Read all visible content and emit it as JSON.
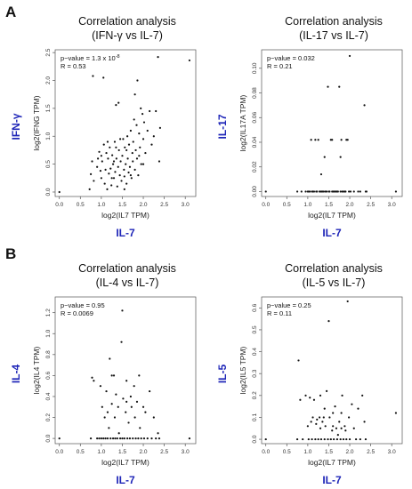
{
  "panels": {
    "A": "A",
    "B": "B"
  },
  "chart_data": [
    {
      "type": "scatter",
      "title_line1": "Correlation analysis",
      "title_line2": "(IFN-γ vs IL-7)",
      "ylabel": "log2(IFNG TPM)",
      "xlabel": "log2(IL7 TPM)",
      "gene_y": "IFN-γ",
      "gene_x": "IL-7",
      "p_text": "p−value = 1.3 x 10",
      "p_exp": "-8",
      "r_text": "R = 0.53",
      "xlim": [
        -0.1,
        3.25
      ],
      "ylim": [
        -0.08,
        2.55
      ],
      "xticks": [
        0.0,
        0.5,
        1.0,
        1.5,
        2.0,
        2.5,
        3.0
      ],
      "xtick_labels": [
        "0.0",
        "0.5",
        "1.0",
        "1.5",
        "2.0",
        "2.5",
        "3.0"
      ],
      "yticks": [
        0.0,
        0.5,
        1.0,
        1.5,
        2.0,
        2.5
      ],
      "ytick_labels": [
        "0.0",
        "0.5",
        "1.0",
        "1.5",
        "2.0",
        "2.5"
      ],
      "points": [
        [
          0.0,
          0.0
        ],
        [
          0.72,
          0.05
        ],
        [
          0.75,
          0.32
        ],
        [
          0.78,
          0.55
        ],
        [
          0.8,
          2.08
        ],
        [
          0.82,
          0.2
        ],
        [
          0.9,
          0.45
        ],
        [
          0.92,
          0.6
        ],
        [
          0.95,
          0.72
        ],
        [
          0.98,
          0.38
        ],
        [
          1.0,
          0.25
        ],
        [
          1.02,
          0.55
        ],
        [
          1.05,
          2.05
        ],
        [
          1.06,
          0.85
        ],
        [
          1.08,
          0.15
        ],
        [
          1.1,
          0.4
        ],
        [
          1.12,
          0.7
        ],
        [
          1.14,
          0.05
        ],
        [
          1.16,
          0.6
        ],
        [
          1.18,
          0.33
        ],
        [
          1.2,
          0.8
        ],
        [
          1.22,
          0.42
        ],
        [
          1.24,
          0.12
        ],
        [
          1.26,
          0.66
        ],
        [
          1.28,
          0.5
        ],
        [
          1.3,
          0.25
        ],
        [
          1.32,
          0.9
        ],
        [
          1.33,
          0.36
        ],
        [
          1.35,
          1.56
        ],
        [
          1.36,
          0.6
        ],
        [
          1.38,
          0.1
        ],
        [
          1.4,
          0.45
        ],
        [
          1.41,
          1.6
        ],
        [
          1.42,
          0.75
        ],
        [
          1.44,
          0.3
        ],
        [
          1.46,
          0.55
        ],
        [
          1.48,
          0.2
        ],
        [
          1.5,
          0.65
        ],
        [
          1.52,
          0.95
        ],
        [
          1.54,
          0.4
        ],
        [
          1.55,
          0.28
        ],
        [
          1.56,
          0.8
        ],
        [
          1.58,
          0.5
        ],
        [
          1.6,
          0.15
        ],
        [
          1.62,
          1.0
        ],
        [
          1.63,
          0.6
        ],
        [
          1.65,
          0.35
        ],
        [
          1.66,
          0.85
        ],
        [
          1.68,
          0.45
        ],
        [
          1.7,
          1.1
        ],
        [
          1.72,
          0.25
        ],
        [
          1.74,
          0.7
        ],
        [
          1.75,
          0.55
        ],
        [
          1.76,
          0.9
        ],
        [
          1.78,
          1.3
        ],
        [
          1.8,
          0.4
        ],
        [
          1.8,
          1.75
        ],
        [
          1.82,
          0.75
        ],
        [
          1.84,
          1.2
        ],
        [
          1.85,
          0.6
        ],
        [
          1.86,
          2.0
        ],
        [
          1.88,
          0.3
        ],
        [
          1.9,
          1.05
        ],
        [
          1.92,
          0.8
        ],
        [
          1.94,
          1.5
        ],
        [
          1.95,
          0.5
        ],
        [
          1.98,
          1.4
        ],
        [
          2.0,
          0.95
        ],
        [
          2.02,
          1.25
        ],
        [
          2.05,
          0.7
        ],
        [
          2.1,
          1.1
        ],
        [
          2.15,
          1.45
        ],
        [
          2.2,
          0.85
        ],
        [
          2.25,
          1.0
        ],
        [
          2.3,
          1.45
        ],
        [
          2.35,
          2.42
        ],
        [
          2.38,
          0.55
        ],
        [
          2.4,
          1.15
        ],
        [
          3.1,
          2.36
        ],
        [
          1.0,
          0.65
        ],
        [
          1.3,
          0.55
        ],
        [
          1.45,
          0.95
        ],
        [
          1.6,
          0.75
        ],
        [
          1.7,
          0.3
        ],
        [
          1.9,
          0.65
        ],
        [
          2.0,
          0.5
        ],
        [
          1.15,
          0.9
        ],
        [
          1.25,
          0.25
        ],
        [
          1.55,
          0.05
        ],
        [
          1.35,
          0.8
        ]
      ]
    },
    {
      "type": "scatter",
      "title_line1": "Correlation analysis",
      "title_line2": "(IL-17 vs IL-7)",
      "ylabel": "log2(IL17A TPM)",
      "xlabel": "log2(IL7 TPM)",
      "gene_y": "IL-17",
      "gene_x": "IL-7",
      "p_text": "p−value = 0.032",
      "p_exp": "",
      "r_text": "R = 0.21",
      "xlim": [
        -0.1,
        3.25
      ],
      "ylim": [
        -0.004,
        0.115
      ],
      "xticks": [
        0.0,
        0.5,
        1.0,
        1.5,
        2.0,
        2.5,
        3.0
      ],
      "xtick_labels": [
        "0.0",
        "0.5",
        "1.0",
        "1.5",
        "2.0",
        "2.5",
        "3.0"
      ],
      "yticks": [
        0.0,
        0.02,
        0.04,
        0.06,
        0.08,
        0.1
      ],
      "ytick_labels": [
        "0.00",
        "0.02",
        "0.04",
        "0.06",
        "0.08",
        "0.10"
      ],
      "points": [
        [
          0.0,
          0.0
        ],
        [
          0.75,
          0.0
        ],
        [
          0.85,
          0.0
        ],
        [
          0.95,
          0.0
        ],
        [
          1.0,
          0.0
        ],
        [
          1.02,
          0.0
        ],
        [
          1.05,
          0.0
        ],
        [
          1.08,
          0.042
        ],
        [
          1.1,
          0.0
        ],
        [
          1.12,
          0.0
        ],
        [
          1.15,
          0.0
        ],
        [
          1.18,
          0.042
        ],
        [
          1.2,
          0.0
        ],
        [
          1.22,
          0.0
        ],
        [
          1.25,
          0.042
        ],
        [
          1.28,
          0.0
        ],
        [
          1.3,
          0.0
        ],
        [
          1.32,
          0.014
        ],
        [
          1.33,
          0.0
        ],
        [
          1.35,
          0.0
        ],
        [
          1.38,
          0.0
        ],
        [
          1.4,
          0.028
        ],
        [
          1.42,
          0.0
        ],
        [
          1.45,
          0.0
        ],
        [
          1.48,
          0.085
        ],
        [
          1.5,
          0.0
        ],
        [
          1.52,
          0.0
        ],
        [
          1.55,
          0.042
        ],
        [
          1.58,
          0.0
        ],
        [
          1.6,
          0.0
        ],
        [
          1.62,
          0.0
        ],
        [
          1.65,
          0.0
        ],
        [
          1.68,
          0.0
        ],
        [
          1.7,
          0.0
        ],
        [
          1.72,
          0.0
        ],
        [
          1.75,
          0.085
        ],
        [
          1.78,
          0.0
        ],
        [
          1.8,
          0.042
        ],
        [
          1.82,
          0.0
        ],
        [
          1.85,
          0.0
        ],
        [
          1.88,
          0.0
        ],
        [
          1.9,
          0.0
        ],
        [
          1.92,
          0.042
        ],
        [
          1.95,
          0.042
        ],
        [
          1.98,
          0.0
        ],
        [
          2.0,
          0.11
        ],
        [
          2.02,
          0.0
        ],
        [
          2.1,
          0.0
        ],
        [
          2.2,
          0.0
        ],
        [
          2.25,
          0.0
        ],
        [
          2.35,
          0.07
        ],
        [
          2.38,
          0.0
        ],
        [
          2.4,
          0.0
        ],
        [
          3.1,
          0.0
        ],
        [
          1.78,
          0.028
        ],
        [
          1.58,
          0.042
        ]
      ]
    },
    {
      "type": "scatter",
      "title_line1": "Correlation analysis",
      "title_line2": "(IL-4 vs IL-7)",
      "ylabel": "log2(IL4 TPM)",
      "xlabel": "log2(IL7 TPM)",
      "gene_y": "IL-4",
      "gene_x": "IL-7",
      "p_text": "p−value = 0.95",
      "p_exp": "",
      "r_text": "R = 0.0069",
      "xlim": [
        -0.1,
        3.25
      ],
      "ylim": [
        -0.05,
        1.35
      ],
      "xticks": [
        0.0,
        0.5,
        1.0,
        1.5,
        2.0,
        2.5,
        3.0
      ],
      "xtick_labels": [
        "0.0",
        "0.5",
        "1.0",
        "1.5",
        "2.0",
        "2.5",
        "3.0"
      ],
      "yticks": [
        0.0,
        0.2,
        0.4,
        0.6,
        0.8,
        1.0,
        1.2
      ],
      "ytick_labels": [
        "0.0",
        "0.2",
        "0.4",
        "0.6",
        "0.8",
        "1.0",
        "1.2"
      ],
      "points": [
        [
          0.0,
          0.0
        ],
        [
          0.75,
          0.0
        ],
        [
          0.78,
          0.58
        ],
        [
          0.82,
          0.55
        ],
        [
          0.9,
          0.0
        ],
        [
          0.95,
          0.0
        ],
        [
          0.98,
          0.5
        ],
        [
          1.0,
          0.0
        ],
        [
          1.02,
          0.3
        ],
        [
          1.05,
          0.0
        ],
        [
          1.08,
          0.2
        ],
        [
          1.1,
          0.0
        ],
        [
          1.12,
          0.45
        ],
        [
          1.15,
          0.0
        ],
        [
          1.18,
          0.1
        ],
        [
          1.2,
          0.76
        ],
        [
          1.22,
          0.0
        ],
        [
          1.25,
          0.33
        ],
        [
          1.28,
          0.0
        ],
        [
          1.3,
          0.6
        ],
        [
          1.32,
          0.2
        ],
        [
          1.33,
          0.0
        ],
        [
          1.35,
          0.42
        ],
        [
          1.38,
          0.0
        ],
        [
          1.4,
          0.3
        ],
        [
          1.42,
          0.05
        ],
        [
          1.45,
          0.0
        ],
        [
          1.48,
          0.92
        ],
        [
          1.5,
          0.0
        ],
        [
          1.5,
          1.22
        ],
        [
          1.52,
          0.38
        ],
        [
          1.55,
          0.0
        ],
        [
          1.58,
          0.25
        ],
        [
          1.6,
          0.55
        ],
        [
          1.62,
          0.0
        ],
        [
          1.65,
          0.15
        ],
        [
          1.68,
          0.0
        ],
        [
          1.7,
          0.4
        ],
        [
          1.72,
          0.3
        ],
        [
          1.75,
          0.0
        ],
        [
          1.78,
          0.5
        ],
        [
          1.8,
          0.2
        ],
        [
          1.82,
          0.0
        ],
        [
          1.85,
          0.35
        ],
        [
          1.88,
          0.0
        ],
        [
          1.9,
          0.6
        ],
        [
          1.92,
          0.1
        ],
        [
          1.95,
          0.0
        ],
        [
          2.0,
          0.3
        ],
        [
          2.02,
          0.0
        ],
        [
          2.05,
          0.25
        ],
        [
          2.1,
          0.0
        ],
        [
          2.15,
          0.45
        ],
        [
          2.2,
          0.0
        ],
        [
          2.25,
          0.2
        ],
        [
          2.3,
          0.0
        ],
        [
          2.35,
          0.05
        ],
        [
          2.38,
          0.0
        ],
        [
          3.1,
          0.0
        ],
        [
          1.25,
          0.6
        ],
        [
          1.6,
          0.35
        ],
        [
          1.15,
          0.25
        ]
      ]
    },
    {
      "type": "scatter",
      "title_line1": "Correlation analysis",
      "title_line2": "(IL-5 vs IL-7)",
      "ylabel": "log2(IL5 TPM)",
      "xlabel": "log2(IL7 TPM)",
      "gene_y": "IL-5",
      "gene_x": "IL-7",
      "p_text": "p−value = 0.25",
      "p_exp": "",
      "r_text": "R = 0.11",
      "xlim": [
        -0.1,
        3.25
      ],
      "ylim": [
        -0.02,
        0.65
      ],
      "xticks": [
        0.0,
        0.5,
        1.0,
        1.5,
        2.0,
        2.5,
        3.0
      ],
      "xtick_labels": [
        "0.0",
        "0.5",
        "1.0",
        "1.5",
        "2.0",
        "2.5",
        "3.0"
      ],
      "yticks": [
        0.0,
        0.1,
        0.2,
        0.3,
        0.4,
        0.5,
        0.6
      ],
      "ytick_labels": [
        "0.0",
        "0.1",
        "0.2",
        "0.3",
        "0.4",
        "0.5",
        "0.6"
      ],
      "points": [
        [
          0.0,
          0.0
        ],
        [
          0.75,
          0.0
        ],
        [
          0.78,
          0.36
        ],
        [
          0.82,
          0.18
        ],
        [
          0.88,
          0.0
        ],
        [
          0.95,
          0.2
        ],
        [
          1.0,
          0.06
        ],
        [
          1.02,
          0.0
        ],
        [
          1.05,
          0.19
        ],
        [
          1.08,
          0.08
        ],
        [
          1.1,
          0.0
        ],
        [
          1.12,
          0.1
        ],
        [
          1.15,
          0.18
        ],
        [
          1.18,
          0.0
        ],
        [
          1.2,
          0.07
        ],
        [
          1.22,
          0.09
        ],
        [
          1.25,
          0.0
        ],
        [
          1.28,
          0.1
        ],
        [
          1.3,
          0.05
        ],
        [
          1.32,
          0.0
        ],
        [
          1.35,
          0.08
        ],
        [
          1.38,
          0.1
        ],
        [
          1.4,
          0.0
        ],
        [
          1.42,
          0.06
        ],
        [
          1.45,
          0.22
        ],
        [
          1.48,
          0.0
        ],
        [
          1.5,
          0.54
        ],
        [
          1.52,
          0.1
        ],
        [
          1.55,
          0.0
        ],
        [
          1.58,
          0.04
        ],
        [
          1.6,
          0.12
        ],
        [
          1.62,
          0.0
        ],
        [
          1.65,
          0.15
        ],
        [
          1.68,
          0.05
        ],
        [
          1.7,
          0.0
        ],
        [
          1.72,
          0.02
        ],
        [
          1.75,
          0.08
        ],
        [
          1.78,
          0.0
        ],
        [
          1.8,
          0.12
        ],
        [
          1.82,
          0.2
        ],
        [
          1.85,
          0.0
        ],
        [
          1.88,
          0.06
        ],
        [
          1.9,
          0.04
        ],
        [
          1.92,
          0.0
        ],
        [
          1.95,
          0.63
        ],
        [
          1.98,
          0.1
        ],
        [
          2.0,
          0.0
        ],
        [
          2.05,
          0.16
        ],
        [
          2.1,
          0.05
        ],
        [
          2.15,
          0.0
        ],
        [
          2.2,
          0.14
        ],
        [
          2.25,
          0.0
        ],
        [
          2.3,
          0.2
        ],
        [
          2.35,
          0.08
        ],
        [
          2.38,
          0.0
        ],
        [
          3.1,
          0.12
        ],
        [
          1.6,
          0.06
        ],
        [
          1.3,
          0.2
        ],
        [
          1.8,
          0.05
        ],
        [
          1.4,
          0.14
        ]
      ]
    }
  ]
}
